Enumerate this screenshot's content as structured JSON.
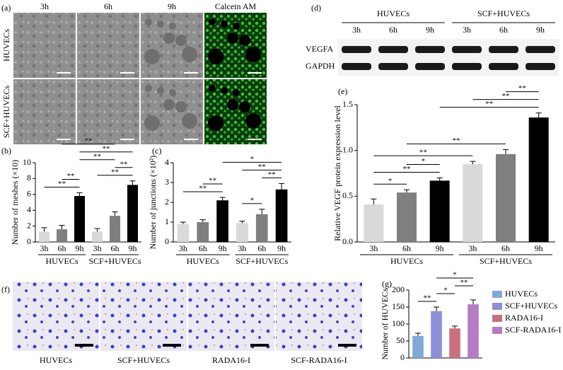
{
  "figure_a": {
    "panel": "(a)",
    "columns": [
      "3h",
      "6h",
      "9h",
      "Calcein AM"
    ],
    "rows": [
      "HUVECs",
      "SCF+HUVECs"
    ]
  },
  "figure_d": {
    "panel": "(d)",
    "groups": [
      "HUVECs",
      "SCF+HUVECs"
    ],
    "times": [
      "3h",
      "6h",
      "9h",
      "3h",
      "6h",
      "9h"
    ],
    "bands": [
      "VEGFA",
      "GAPDH"
    ]
  },
  "figure_f": {
    "panel": "(f)",
    "labels": [
      "HUVECs",
      "SCF+HUVECs",
      "RADA16-I",
      "SCF-RADA16-I"
    ]
  },
  "chart_data": [
    {
      "type": "bar",
      "panel": "(b)",
      "y_label": "Number of meshes (×10)",
      "categories": [
        "3h",
        "6h",
        "9h",
        "3h",
        "6h",
        "9h"
      ],
      "groups": [
        "HUVECs",
        "SCF+HUVECs"
      ],
      "values": [
        1.3,
        1.6,
        5.8,
        1.3,
        3.3,
        7.2
      ],
      "errors": [
        0.5,
        0.5,
        0.4,
        0.4,
        0.5,
        0.5
      ],
      "colors": [
        "#d9d9d9",
        "#7f7f7f",
        "#000000",
        "#d9d9d9",
        "#7f7f7f",
        "#000000"
      ],
      "ylim": [
        0,
        10
      ],
      "yticks": [
        0,
        2,
        4,
        6,
        8,
        10
      ],
      "annotations": [
        {
          "text": "**",
          "from": 0,
          "to": 2
        },
        {
          "text": "**",
          "from": 1,
          "to": 2
        },
        {
          "text": "**",
          "from": 3,
          "to": 5
        },
        {
          "text": "**",
          "from": 4,
          "to": 5
        },
        {
          "text": "**",
          "from": 2,
          "to": 4
        },
        {
          "text": "**",
          "from": 2,
          "to": 5
        },
        {
          "text": "**",
          "from": 1,
          "to": 4
        }
      ]
    },
    {
      "type": "bar",
      "panel": "(c)",
      "y_label": "Number of junctions (×10²)",
      "categories": [
        "3h",
        "6h",
        "9h",
        "3h",
        "6h",
        "9h"
      ],
      "groups": [
        "HUVECs",
        "SCF+HUVECs"
      ],
      "values": [
        0.9,
        1.0,
        2.1,
        0.95,
        1.4,
        2.65
      ],
      "errors": [
        0.1,
        0.12,
        0.15,
        0.1,
        0.25,
        0.3
      ],
      "colors": [
        "#d9d9d9",
        "#7f7f7f",
        "#000000",
        "#d9d9d9",
        "#7f7f7f",
        "#000000"
      ],
      "ylim": [
        0,
        4
      ],
      "yticks": [
        0,
        1,
        2,
        3,
        4
      ],
      "annotations": [
        {
          "text": "**",
          "from": 0,
          "to": 2
        },
        {
          "text": "**",
          "from": 1,
          "to": 2
        },
        {
          "text": "*",
          "from": 3,
          "to": 4
        },
        {
          "text": "**",
          "from": 4,
          "to": 5
        },
        {
          "text": "**",
          "from": 3,
          "to": 5
        },
        {
          "text": "*",
          "from": 2,
          "to": 5
        }
      ]
    },
    {
      "type": "bar",
      "panel": "(e)",
      "y_label": "Relative VEGF protein expression level",
      "categories": [
        "3h",
        "6h",
        "9h",
        "3h",
        "6h",
        "9h"
      ],
      "groups": [
        "HUVECs",
        "SCF+HUVECs"
      ],
      "values": [
        0.41,
        0.54,
        0.67,
        0.85,
        0.96,
        1.36
      ],
      "errors": [
        0.06,
        0.03,
        0.03,
        0.03,
        0.05,
        0.05
      ],
      "colors": [
        "#d9d9d9",
        "#7f7f7f",
        "#000000",
        "#d9d9d9",
        "#7f7f7f",
        "#000000"
      ],
      "ylim": [
        0,
        1.5
      ],
      "yticks": [
        {
          "value": 0,
          "label": "0.0"
        },
        0.5,
        {
          "value": 1,
          "label": "1.0"
        },
        1.5
      ],
      "annotations": [
        {
          "text": "*",
          "from": 0,
          "to": 1
        },
        {
          "text": "**",
          "from": 0,
          "to": 2
        },
        {
          "text": "*",
          "from": 1,
          "to": 2
        },
        {
          "text": "**",
          "from": 0,
          "to": 3
        },
        {
          "text": "**",
          "from": 1,
          "to": 4
        },
        {
          "text": "**",
          "from": 2,
          "to": 5
        },
        {
          "text": "**",
          "from": 3,
          "to": 5
        },
        {
          "text": "**",
          "from": 4,
          "to": 5
        }
      ]
    },
    {
      "type": "bar",
      "panel": "(g)",
      "y_label": "Number of HUVECs",
      "categories": [
        "HUVECs",
        "SCF+HUVECs",
        "RADA16-I",
        "SCF-RADA16-I"
      ],
      "values": [
        65,
        138,
        87,
        158
      ],
      "errors": [
        8,
        12,
        7,
        13
      ],
      "colors": [
        "#7fa9d6",
        "#8d8fd8",
        "#c9707e",
        "#b57cc4"
      ],
      "ylim": [
        0,
        200
      ],
      "yticks": [
        0,
        50,
        100,
        150,
        200
      ],
      "legend": "right",
      "annotations": [
        {
          "text": "**",
          "from": 0,
          "to": 1
        },
        {
          "text": "*",
          "from": 1,
          "to": 2
        },
        {
          "text": "**",
          "from": 2,
          "to": 3
        },
        {
          "text": "*",
          "from": 1,
          "to": 3
        }
      ]
    }
  ]
}
